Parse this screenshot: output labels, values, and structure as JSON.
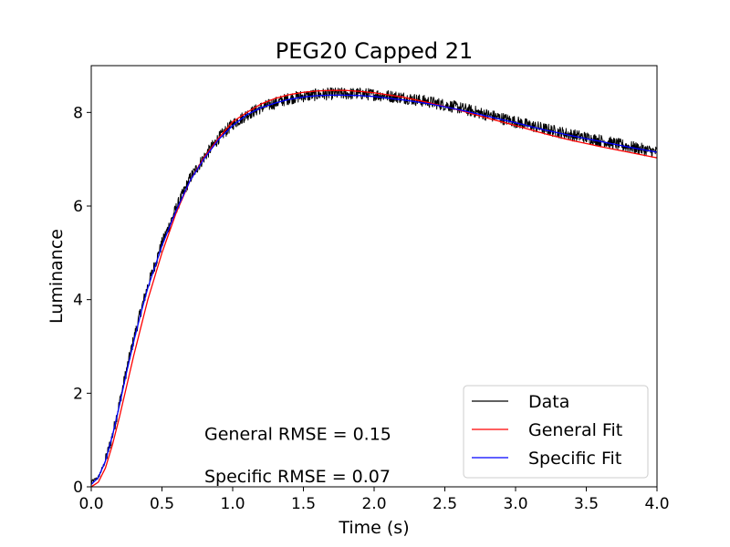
{
  "chart_data": {
    "type": "line",
    "title": "PEG20 Capped 21",
    "xlabel": "Time (s)",
    "ylabel": "Luminance",
    "xlim": [
      0.0,
      4.0
    ],
    "ylim": [
      0.0,
      9.0
    ],
    "xticks": [
      0.0,
      0.5,
      1.0,
      1.5,
      2.0,
      2.5,
      3.0,
      3.5,
      4.0
    ],
    "xtick_labels": [
      "0.0",
      "0.5",
      "1.0",
      "1.5",
      "2.0",
      "2.5",
      "3.0",
      "3.5",
      "4.0"
    ],
    "yticks": [
      0,
      2,
      4,
      6,
      8
    ],
    "ytick_labels": [
      "0",
      "2",
      "4",
      "6",
      "8"
    ],
    "grid": false,
    "legend_position": "bottom-right",
    "series": [
      {
        "name": "Data",
        "color": "#000000",
        "noisy": true,
        "x": [
          0.0,
          0.05,
          0.1,
          0.15,
          0.2,
          0.25,
          0.3,
          0.35,
          0.4,
          0.5,
          0.6,
          0.7,
          0.8,
          0.9,
          1.0,
          1.1,
          1.2,
          1.3,
          1.4,
          1.5,
          1.6,
          1.7,
          1.8,
          1.9,
          2.0,
          2.2,
          2.4,
          2.6,
          2.8,
          3.0,
          3.2,
          3.4,
          3.6,
          3.8,
          4.0
        ],
        "y": [
          0.1,
          0.2,
          0.55,
          1.1,
          1.8,
          2.5,
          3.15,
          3.75,
          4.3,
          5.2,
          5.95,
          6.6,
          7.05,
          7.45,
          7.75,
          7.95,
          8.1,
          8.2,
          8.3,
          8.35,
          8.38,
          8.4,
          8.4,
          8.4,
          8.38,
          8.32,
          8.22,
          8.1,
          7.95,
          7.8,
          7.65,
          7.52,
          7.4,
          7.27,
          7.15
        ]
      },
      {
        "name": "General Fit",
        "color": "#ff0000",
        "x": [
          0.0,
          0.05,
          0.1,
          0.15,
          0.2,
          0.25,
          0.3,
          0.35,
          0.4,
          0.5,
          0.6,
          0.7,
          0.8,
          0.9,
          1.0,
          1.1,
          1.2,
          1.3,
          1.4,
          1.5,
          1.6,
          1.7,
          1.8,
          1.9,
          2.0,
          2.2,
          2.4,
          2.6,
          2.8,
          3.0,
          3.2,
          3.4,
          3.6,
          3.8,
          4.0
        ],
        "y": [
          0.0,
          0.1,
          0.4,
          0.9,
          1.5,
          2.15,
          2.8,
          3.4,
          4.0,
          5.0,
          5.85,
          6.55,
          7.05,
          7.45,
          7.8,
          8.0,
          8.18,
          8.3,
          8.38,
          8.43,
          8.46,
          8.47,
          8.47,
          8.45,
          8.42,
          8.33,
          8.2,
          8.05,
          7.88,
          7.72,
          7.55,
          7.4,
          7.27,
          7.15,
          7.03
        ]
      },
      {
        "name": "Specific Fit",
        "color": "#0000ff",
        "x": [
          0.0,
          0.05,
          0.1,
          0.15,
          0.2,
          0.25,
          0.3,
          0.35,
          0.4,
          0.5,
          0.6,
          0.7,
          0.8,
          0.9,
          1.0,
          1.1,
          1.2,
          1.3,
          1.4,
          1.5,
          1.6,
          1.7,
          1.8,
          1.9,
          2.0,
          2.2,
          2.4,
          2.6,
          2.8,
          3.0,
          3.2,
          3.4,
          3.6,
          3.8,
          4.0
        ],
        "y": [
          0.05,
          0.2,
          0.55,
          1.1,
          1.75,
          2.45,
          3.1,
          3.7,
          4.25,
          5.15,
          5.9,
          6.55,
          7.02,
          7.42,
          7.72,
          7.95,
          8.1,
          8.2,
          8.28,
          8.33,
          8.36,
          8.37,
          8.37,
          8.36,
          8.34,
          8.27,
          8.18,
          8.06,
          7.92,
          7.78,
          7.63,
          7.5,
          7.38,
          7.26,
          7.15
        ]
      }
    ],
    "annotations": [
      {
        "text": "General RMSE = 0.15",
        "x": 0.8,
        "y": 1.0
      },
      {
        "text": "Specific RMSE = 0.07",
        "x": 0.8,
        "y": 0.1
      }
    ]
  }
}
